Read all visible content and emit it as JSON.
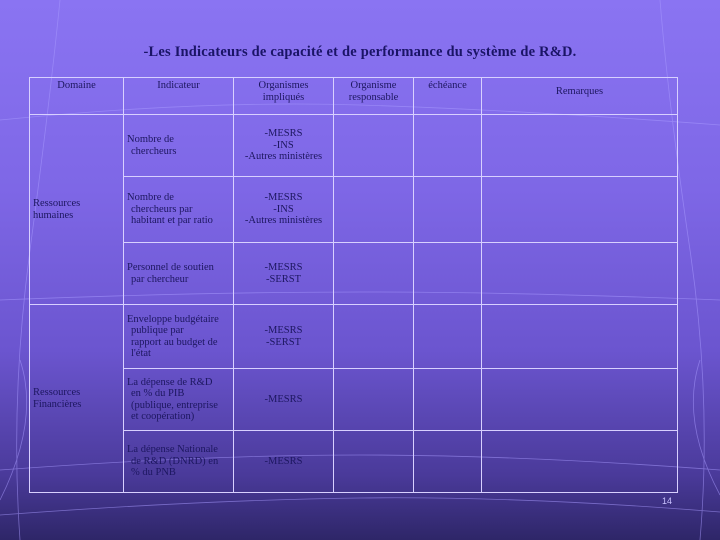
{
  "title": "-Les Indicateurs de capacité et de performance du système de R&D.",
  "headers": {
    "domaine": "Domaine",
    "indicateur": "Indicateur",
    "organismes_impliques_1": "Organismes",
    "organismes_impliques_2": "impliqués",
    "organisme_responsable_1": "Organisme",
    "organisme_responsable_2": "responsable",
    "echeance": "échéance",
    "remarques": "Remarques"
  },
  "domains": {
    "rh_1": "Ressources",
    "rh_2": "humaines",
    "rf_1": "Ressources",
    "rf_2": "Financières"
  },
  "rows": [
    {
      "indicator": [
        "Nombre de",
        "chercheurs"
      ],
      "organismes": [
        "-MESRS",
        "-INS",
        "-Autres ministères"
      ]
    },
    {
      "indicator": [
        "Nombre de",
        "chercheurs par",
        "habitant et par ratio"
      ],
      "organismes": [
        "-MESRS",
        "-INS",
        "-Autres ministères"
      ]
    },
    {
      "indicator": [
        "Personnel de soutien",
        "par chercheur"
      ],
      "organismes": [
        "-MESRS",
        "-SERST"
      ]
    },
    {
      "indicator": [
        "Enveloppe budgétaire",
        "publique par",
        "rapport au budget de",
        "l'état"
      ],
      "organismes": [
        "-MESRS",
        "-SERST"
      ]
    },
    {
      "indicator": [
        "La dépense de R&D",
        "en % du PIB",
        "(publique, entreprise",
        "et coopération)"
      ],
      "organismes": [
        "-MESRS"
      ]
    },
    {
      "indicator": [
        "La dépense Nationale",
        "de R&D (DNRD) en",
        "% du PNB"
      ],
      "organismes": [
        "-MESRS"
      ]
    }
  ],
  "page_number": "14"
}
